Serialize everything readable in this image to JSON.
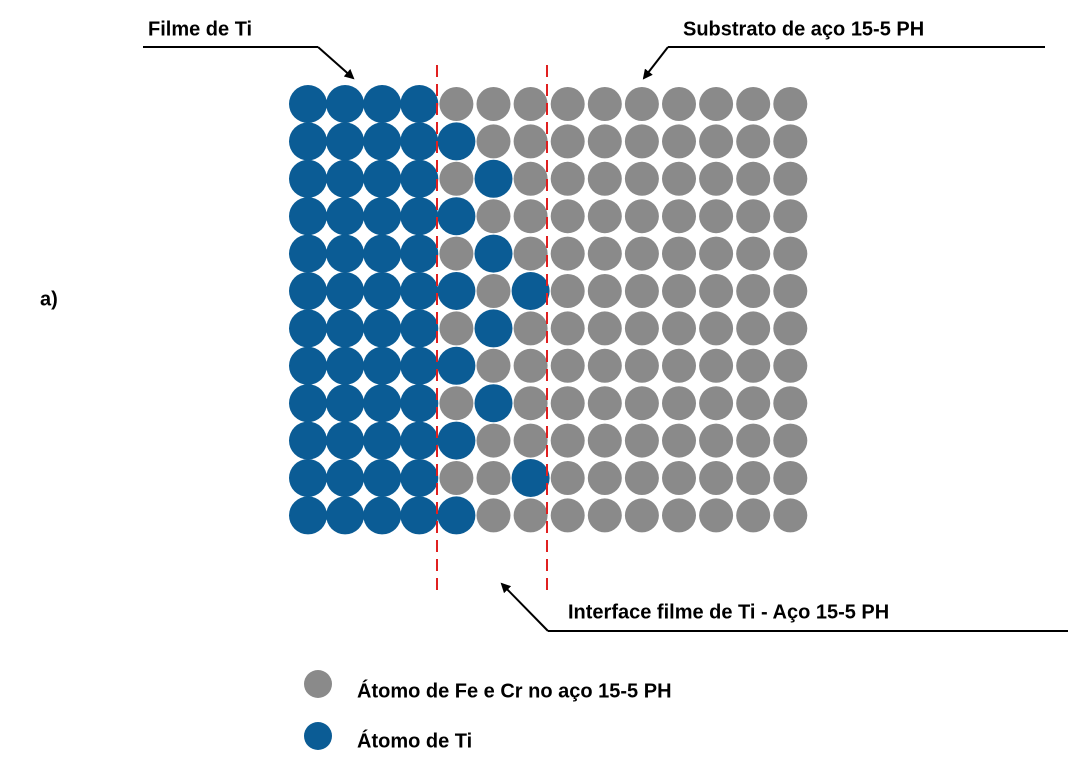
{
  "panel_label": "a)",
  "labels": {
    "film": "Filme de Ti",
    "substrate": "Substrato de aço 15-5 PH",
    "interface": "Interface filme de Ti - Aço 15-5 PH"
  },
  "legend": [
    {
      "label": "Átomo de Fe e Cr no aço 15-5 PH"
    },
    {
      "label": "Átomo de Ti"
    }
  ]
}
